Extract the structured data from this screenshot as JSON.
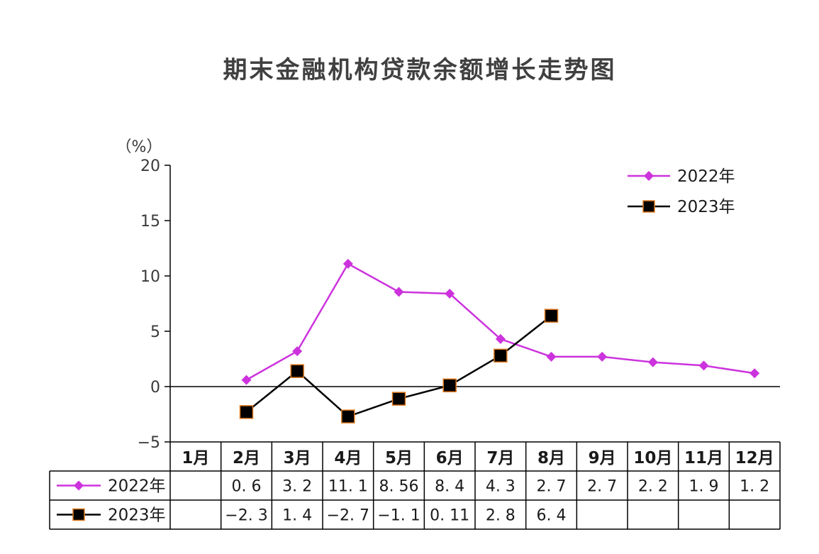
{
  "chart_data": {
    "type": "line",
    "title": "期末金融机构贷款余额增长走势图",
    "ylabel": "（%）",
    "ylim": [
      -5,
      20
    ],
    "yticks": [
      -5,
      0,
      5,
      10,
      15,
      20
    ],
    "categories": [
      "1月",
      "2月",
      "3月",
      "4月",
      "5月",
      "6月",
      "7月",
      "8月",
      "9月",
      "10月",
      "11月",
      "12月"
    ],
    "legend_position": "top-right",
    "series": [
      {
        "name": "2022年",
        "color": "#cc33dd",
        "marker": "diamond",
        "values": [
          null,
          0.6,
          3.2,
          11.1,
          8.56,
          8.4,
          4.3,
          2.7,
          2.7,
          2.2,
          1.9,
          1.2
        ],
        "labels": [
          "",
          "0. 6",
          "3. 2",
          "11. 1",
          "8. 56",
          "8. 4",
          "4. 3",
          "2. 7",
          "2. 7",
          "2. 2",
          "1. 9",
          "1. 2"
        ]
      },
      {
        "name": "2023年",
        "color": "#000000",
        "marker_border": "#e07a1f",
        "marker": "square",
        "values": [
          null,
          -2.3,
          1.4,
          -2.7,
          -1.1,
          0.11,
          2.8,
          6.4,
          null,
          null,
          null,
          null
        ],
        "labels": [
          "",
          "−2. 3",
          "1. 4",
          "−2. 7",
          "−1. 1",
          "0. 11",
          "2. 8",
          "6. 4",
          "",
          "",
          "",
          ""
        ]
      }
    ]
  }
}
